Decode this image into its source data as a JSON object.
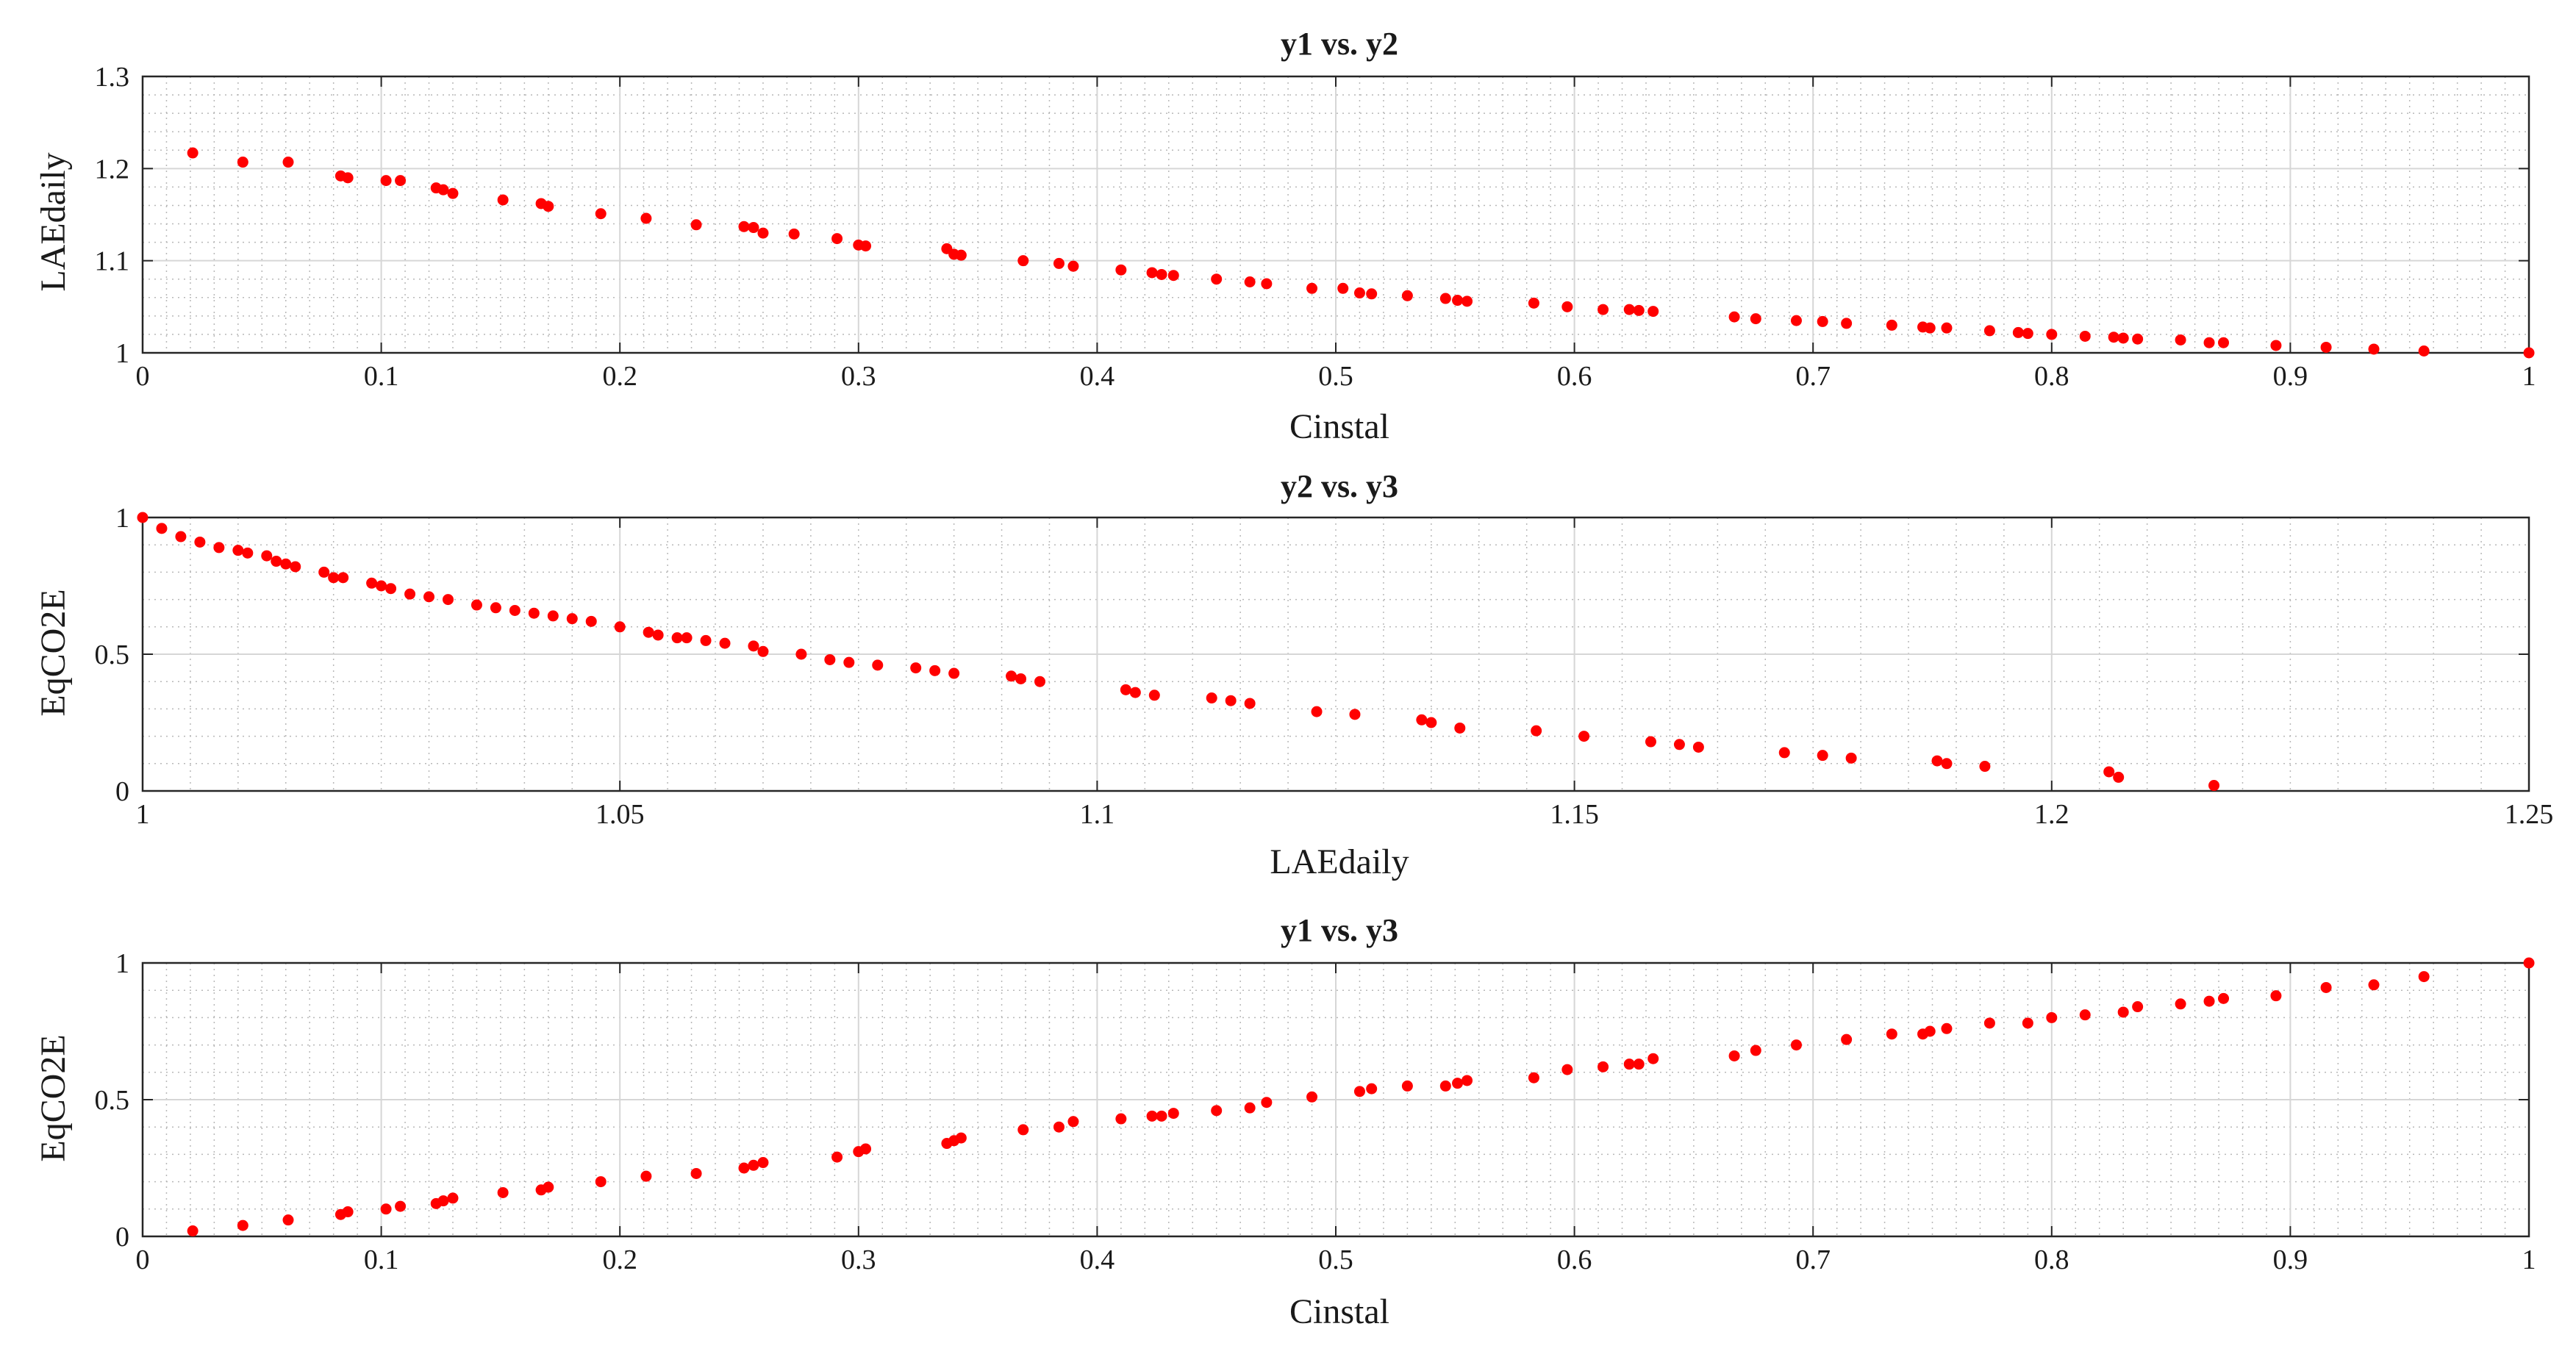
{
  "chart_data": [
    {
      "type": "scatter",
      "title": "y1 vs. y2",
      "xlabel": "Cinstal",
      "ylabel": "LAEdaily",
      "xlim": [
        0,
        1
      ],
      "ylim": [
        1,
        1.3
      ],
      "xticks": [
        0,
        0.1,
        0.2,
        0.3,
        0.4,
        0.5,
        0.6,
        0.7,
        0.8,
        0.9,
        1
      ],
      "yticks": [
        1,
        1.1,
        1.2,
        1.3
      ],
      "xtick_labels": [
        "0",
        "0.1",
        "0.2",
        "0.3",
        "0.4",
        "0.5",
        "0.6",
        "0.7",
        "0.8",
        "0.9",
        "1"
      ],
      "ytick_labels": [
        "1",
        "1.1",
        "1.2",
        "1.3"
      ],
      "grid": true,
      "minor_grid": true,
      "marker_color": "#ff0000",
      "series": [
        {
          "name": "y1 vs. y2",
          "x": [
            0.021,
            0.042,
            0.061,
            0.083,
            0.086,
            0.102,
            0.108,
            0.123,
            0.126,
            0.13,
            0.151,
            0.167,
            0.17,
            0.192,
            0.211,
            0.232,
            0.252,
            0.256,
            0.26,
            0.273,
            0.291,
            0.3,
            0.303,
            0.337,
            0.34,
            0.343,
            0.369,
            0.384,
            0.39,
            0.41,
            0.423,
            0.427,
            0.432,
            0.45,
            0.464,
            0.471,
            0.49,
            0.503,
            0.51,
            0.515,
            0.53,
            0.546,
            0.551,
            0.555,
            0.583,
            0.597,
            0.612,
            0.623,
            0.627,
            0.633,
            0.667,
            0.676,
            0.693,
            0.704,
            0.714,
            0.733,
            0.746,
            0.749,
            0.756,
            0.774,
            0.786,
            0.79,
            0.8,
            0.814,
            0.826,
            0.83,
            0.836,
            0.854,
            0.866,
            0.872,
            0.894,
            0.915,
            0.935,
            0.956,
            1.0
          ],
          "y": [
            1.217,
            1.207,
            1.207,
            1.192,
            1.19,
            1.187,
            1.187,
            1.179,
            1.177,
            1.173,
            1.166,
            1.162,
            1.159,
            1.151,
            1.146,
            1.139,
            1.137,
            1.136,
            1.13,
            1.129,
            1.124,
            1.117,
            1.116,
            1.113,
            1.107,
            1.106,
            1.1,
            1.097,
            1.094,
            1.09,
            1.087,
            1.085,
            1.084,
            1.08,
            1.077,
            1.075,
            1.07,
            1.07,
            1.065,
            1.064,
            1.062,
            1.059,
            1.057,
            1.056,
            1.054,
            1.05,
            1.047,
            1.047,
            1.046,
            1.045,
            1.039,
            1.037,
            1.035,
            1.034,
            1.032,
            1.03,
            1.028,
            1.027,
            1.027,
            1.024,
            1.022,
            1.021,
            1.02,
            1.018,
            1.017,
            1.016,
            1.015,
            1.014,
            1.011,
            1.011,
            1.008,
            1.006,
            1.004,
            1.002,
            1.0
          ]
        }
      ]
    },
    {
      "type": "scatter",
      "title": "y2 vs. y3",
      "xlabel": "LAEdaily",
      "ylabel": "EqCO2E",
      "xlim": [
        1,
        1.25
      ],
      "ylim": [
        0,
        1
      ],
      "xticks": [
        1,
        1.05,
        1.1,
        1.15,
        1.2,
        1.25
      ],
      "yticks": [
        0,
        0.5,
        1
      ],
      "xtick_labels": [
        "1",
        "1.05",
        "1.1",
        "1.15",
        "1.2",
        "1.25"
      ],
      "ytick_labels": [
        "0",
        "0.5",
        "1"
      ],
      "grid": true,
      "minor_grid": true,
      "marker_color": "#ff0000",
      "series": [
        {
          "name": "y2 vs. y3",
          "x": [
            1.0,
            1.002,
            1.004,
            1.006,
            1.008,
            1.01,
            1.011,
            1.013,
            1.014,
            1.015,
            1.016,
            1.019,
            1.02,
            1.021,
            1.024,
            1.025,
            1.026,
            1.028,
            1.03,
            1.032,
            1.035,
            1.037,
            1.039,
            1.041,
            1.043,
            1.045,
            1.047,
            1.05,
            1.053,
            1.054,
            1.056,
            1.057,
            1.059,
            1.061,
            1.064,
            1.065,
            1.069,
            1.072,
            1.074,
            1.077,
            1.081,
            1.083,
            1.085,
            1.091,
            1.092,
            1.094,
            1.103,
            1.104,
            1.106,
            1.112,
            1.114,
            1.116,
            1.123,
            1.127,
            1.134,
            1.135,
            1.138,
            1.146,
            1.151,
            1.158,
            1.161,
            1.163,
            1.172,
            1.176,
            1.179,
            1.188,
            1.189,
            1.193,
            1.206,
            1.207,
            1.217
          ],
          "y": [
            1.0,
            0.96,
            0.93,
            0.91,
            0.89,
            0.88,
            0.87,
            0.86,
            0.84,
            0.83,
            0.82,
            0.8,
            0.78,
            0.78,
            0.76,
            0.75,
            0.74,
            0.72,
            0.71,
            0.7,
            0.68,
            0.67,
            0.66,
            0.65,
            0.64,
            0.63,
            0.62,
            0.6,
            0.58,
            0.57,
            0.56,
            0.56,
            0.55,
            0.54,
            0.53,
            0.51,
            0.5,
            0.48,
            0.47,
            0.46,
            0.45,
            0.44,
            0.43,
            0.42,
            0.41,
            0.4,
            0.37,
            0.36,
            0.35,
            0.34,
            0.33,
            0.32,
            0.29,
            0.28,
            0.26,
            0.25,
            0.23,
            0.22,
            0.2,
            0.18,
            0.17,
            0.16,
            0.14,
            0.13,
            0.12,
            0.11,
            0.1,
            0.09,
            0.07,
            0.05,
            0.02
          ]
        }
      ]
    },
    {
      "type": "scatter",
      "title": "y1 vs. y3",
      "xlabel": "Cinstal",
      "ylabel": "EqCO2E",
      "xlim": [
        0,
        1
      ],
      "ylim": [
        0,
        1
      ],
      "xticks": [
        0,
        0.1,
        0.2,
        0.3,
        0.4,
        0.5,
        0.6,
        0.7,
        0.8,
        0.9,
        1
      ],
      "yticks": [
        0,
        0.5,
        1
      ],
      "xtick_labels": [
        "0",
        "0.1",
        "0.2",
        "0.3",
        "0.4",
        "0.5",
        "0.6",
        "0.7",
        "0.8",
        "0.9",
        "1"
      ],
      "ytick_labels": [
        "0",
        "0.5",
        "1"
      ],
      "grid": true,
      "minor_grid": true,
      "marker_color": "#ff0000",
      "series": [
        {
          "name": "y1 vs. y3",
          "x": [
            0.021,
            0.042,
            0.061,
            0.083,
            0.086,
            0.102,
            0.108,
            0.123,
            0.126,
            0.13,
            0.151,
            0.167,
            0.17,
            0.192,
            0.211,
            0.232,
            0.252,
            0.256,
            0.26,
            0.291,
            0.3,
            0.303,
            0.337,
            0.34,
            0.343,
            0.369,
            0.384,
            0.39,
            0.41,
            0.423,
            0.427,
            0.432,
            0.45,
            0.464,
            0.471,
            0.49,
            0.51,
            0.515,
            0.53,
            0.546,
            0.551,
            0.555,
            0.583,
            0.597,
            0.612,
            0.623,
            0.627,
            0.633,
            0.667,
            0.676,
            0.693,
            0.714,
            0.733,
            0.746,
            0.749,
            0.756,
            0.774,
            0.79,
            0.8,
            0.814,
            0.83,
            0.836,
            0.854,
            0.866,
            0.872,
            0.894,
            0.915,
            0.935,
            0.956,
            1.0
          ],
          "y": [
            0.02,
            0.04,
            0.06,
            0.08,
            0.09,
            0.1,
            0.11,
            0.12,
            0.13,
            0.14,
            0.16,
            0.17,
            0.18,
            0.2,
            0.22,
            0.23,
            0.25,
            0.26,
            0.27,
            0.29,
            0.31,
            0.32,
            0.34,
            0.35,
            0.36,
            0.39,
            0.4,
            0.42,
            0.43,
            0.44,
            0.44,
            0.45,
            0.46,
            0.47,
            0.49,
            0.51,
            0.53,
            0.54,
            0.55,
            0.55,
            0.56,
            0.57,
            0.58,
            0.61,
            0.62,
            0.63,
            0.63,
            0.65,
            0.66,
            0.68,
            0.7,
            0.72,
            0.74,
            0.74,
            0.75,
            0.76,
            0.78,
            0.78,
            0.8,
            0.81,
            0.82,
            0.84,
            0.85,
            0.86,
            0.87,
            0.88,
            0.91,
            0.92,
            0.95,
            1.0
          ]
        }
      ]
    }
  ]
}
